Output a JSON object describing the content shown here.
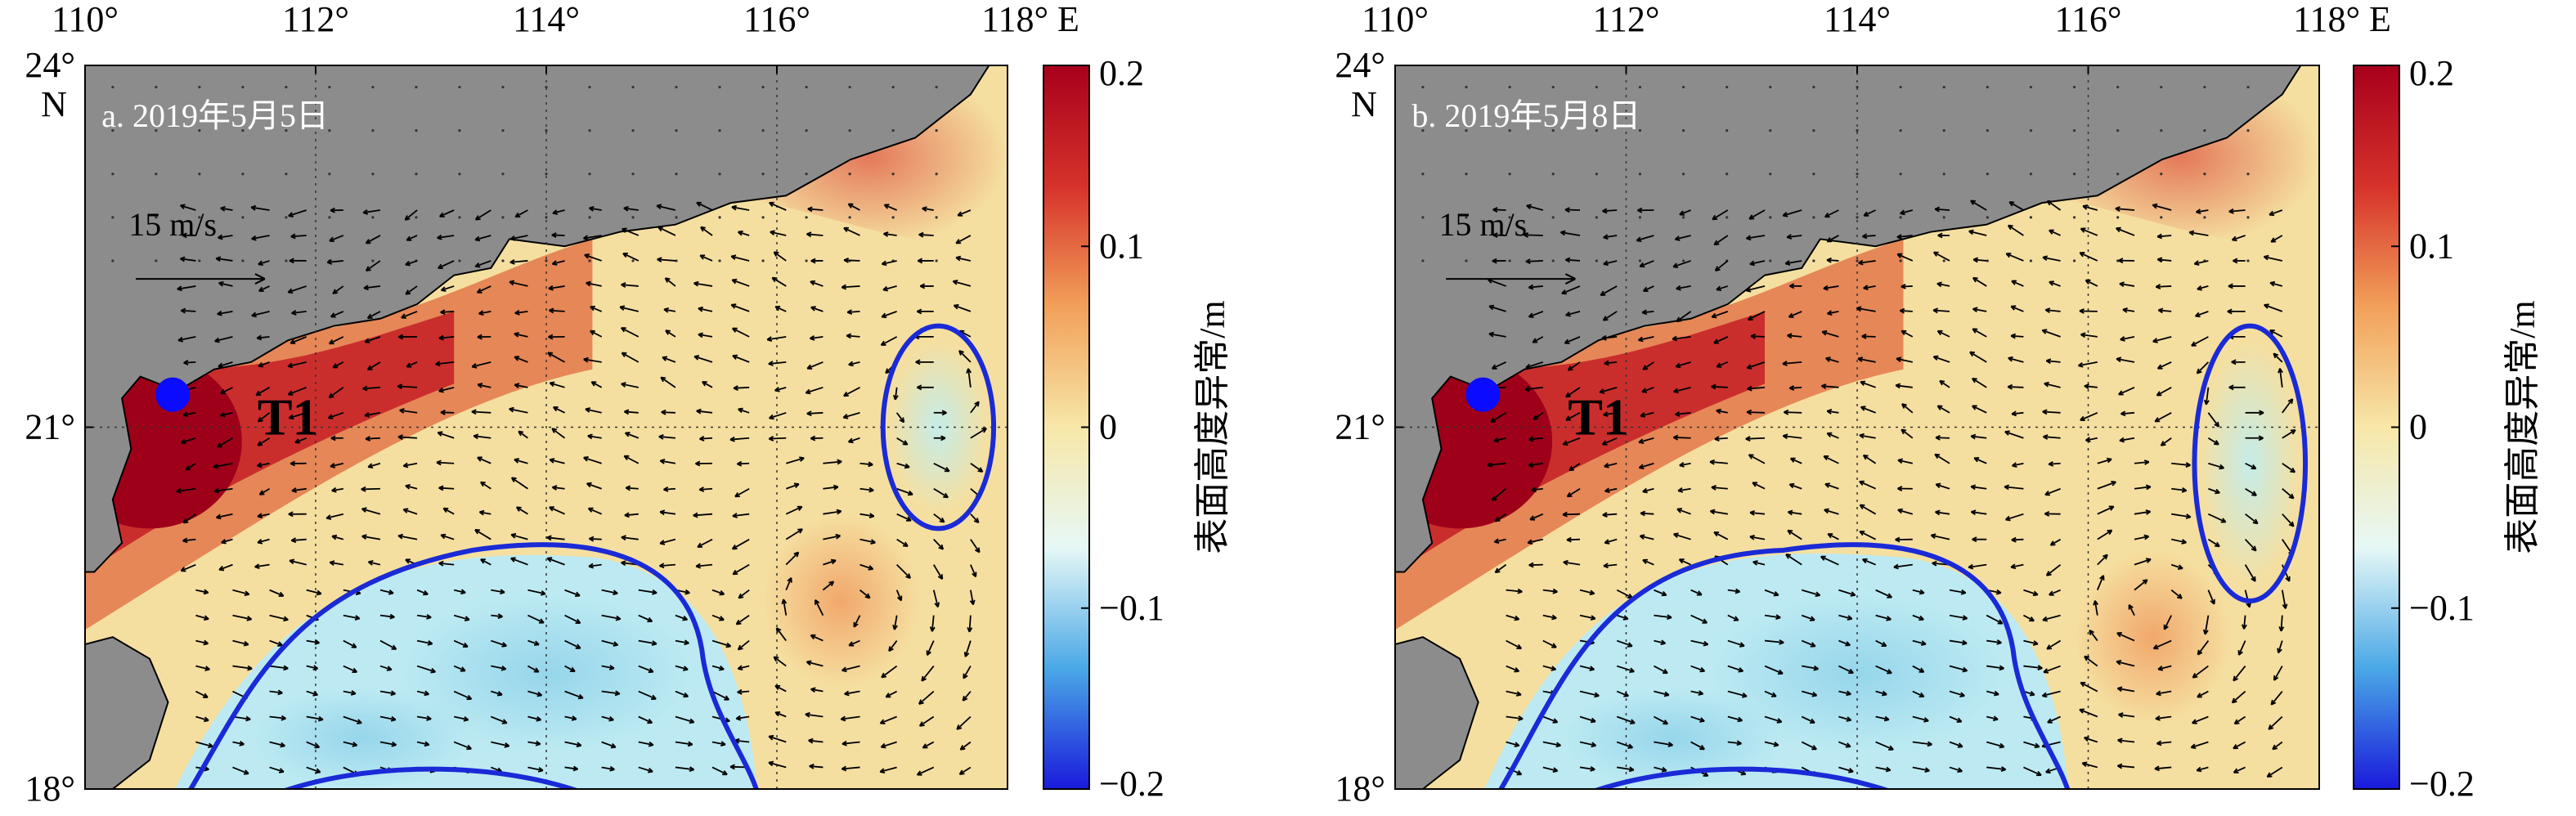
{
  "figure": {
    "panels": [
      {
        "id": "a",
        "label": "a. 2019年5月5日",
        "scale_text": "15 m/s",
        "station_label": "T1",
        "lon_ticks": [
          "110°",
          "112°",
          "114°",
          "116°",
          "118° E"
        ],
        "lat_ticks": [
          "24°",
          "21°",
          "18°"
        ],
        "lat_unit": "N",
        "colorbar": {
          "ticks": [
            "0.2",
            "0.1",
            "0",
            "−0.1",
            "−0.2"
          ],
          "label": "表面高度异常/m"
        }
      },
      {
        "id": "b",
        "label": "b. 2019年5月8日",
        "scale_text": "15 m/s",
        "station_label": "T1",
        "lon_ticks": [
          "110°",
          "112°",
          "114°",
          "116°",
          "118° E"
        ],
        "lat_ticks": [
          "24°",
          "21°",
          "18°"
        ],
        "lat_unit": "N",
        "colorbar": {
          "ticks": [
            "0.2",
            "0.1",
            "0",
            "−0.1",
            "−0.2"
          ],
          "label": "表面高度异常/m"
        }
      }
    ],
    "map_extent": {
      "lon": [
        110,
        118
      ],
      "lat": [
        18,
        24
      ]
    },
    "colorbar_range": [
      -0.2,
      0.2
    ],
    "colormap": [
      "#1a1adb",
      "#4aa8e6",
      "#e6f8f6",
      "#f7e7a8",
      "#f2a05a",
      "#d6322a",
      "#a8001c"
    ],
    "land_color": "#8c8c8c",
    "contour_color": "#1a2ad6",
    "station_color": "#0b0bff"
  }
}
